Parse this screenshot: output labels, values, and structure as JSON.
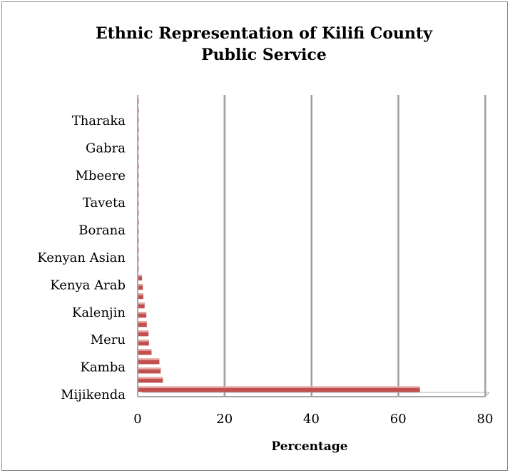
{
  "chart_data": {
    "type": "bar",
    "orientation": "horizontal",
    "title": "Ethnic Representation of Kilifi County Public Service",
    "title_lines": [
      "Ethnic Representation of Kilifi County",
      "Public Service"
    ],
    "xlabel": "Percentage",
    "ylabel": "",
    "xlim": [
      0,
      80
    ],
    "x_ticks": [
      0,
      20,
      40,
      60,
      80
    ],
    "grid": "vertical major gridlines",
    "legend": "none",
    "bar_color": "#c0504d",
    "category_labels_shown": [
      "Tharaka",
      "Gabra",
      "Mbeere",
      "Taveta",
      "Borana",
      "Kenyan Asian",
      "Kenya Arab",
      "Kalenjin",
      "Meru",
      "Kamba",
      "Mijikenda"
    ],
    "bars_top_to_bottom": [
      0.1,
      0.1,
      0.1,
      0.1,
      0.1,
      0.1,
      0.1,
      0.1,
      0.1,
      0.1,
      0.1,
      0.1,
      0.1,
      0.1,
      0.1,
      0.1,
      0.1,
      0.1,
      0.2,
      1.0,
      1.2,
      1.3,
      1.6,
      2.0,
      2.1,
      2.5,
      2.6,
      3.2,
      5.0,
      5.3,
      5.8,
      65.0
    ]
  }
}
